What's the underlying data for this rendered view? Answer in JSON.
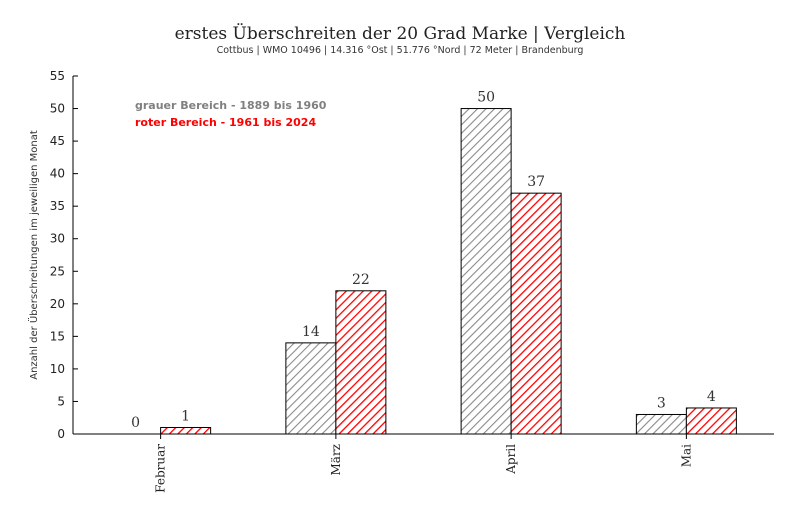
{
  "chart_data": {
    "type": "bar",
    "title": "erstes Überschreiten der 20 Grad Marke | Vergleich",
    "subtitle": "Cottbus | WMO 10496 | 14.316 °Ost | 51.776 °Nord | 72 Meter | Brandenburg",
    "xlabel": "",
    "ylabel": "Anzahl der Überschreitungen im jeweiligen Monat",
    "ylim": [
      0,
      55
    ],
    "yticks": [
      0,
      5,
      10,
      15,
      20,
      25,
      30,
      35,
      40,
      45,
      50,
      55
    ],
    "grid": false,
    "legend_position": "top-left",
    "categories": [
      "Februar",
      "März",
      "April",
      "Mai"
    ],
    "series": [
      {
        "name": "grauer Bereich - 1889 bis 1960",
        "values": [
          0,
          14,
          50,
          3
        ],
        "color": "#808080"
      },
      {
        "name": "roter Bereich - 1961 bis 2024",
        "values": [
          1,
          22,
          37,
          4
        ],
        "color": "#ff0000"
      }
    ]
  }
}
